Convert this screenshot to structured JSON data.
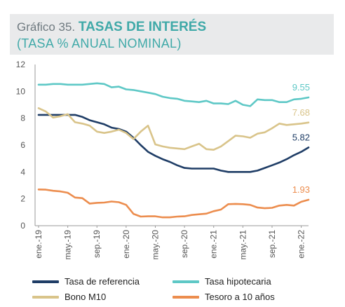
{
  "header": {
    "prefix": "Gráfico 35. ",
    "title": "TASAS DE INTERÉS",
    "subtitle": "(TASA % ANUAL NOMINAL)"
  },
  "chart_data": {
    "type": "line",
    "title": "TASAS DE INTERÉS",
    "subtitle": "(TASA % ANUAL NOMINAL)",
    "ylim": [
      0,
      12
    ],
    "yticks": [
      0,
      2,
      4,
      6,
      8,
      10,
      12
    ],
    "grid": false,
    "legend_placement": "bottom",
    "x": [
      "2019-01",
      "2019-02",
      "2019-03",
      "2019-04",
      "2019-05",
      "2019-06",
      "2019-07",
      "2019-08",
      "2019-09",
      "2019-10",
      "2019-11",
      "2019-12",
      "2020-01",
      "2020-02",
      "2020-03",
      "2020-04",
      "2020-05",
      "2020-06",
      "2020-07",
      "2020-08",
      "2020-09",
      "2020-10",
      "2020-11",
      "2020-12",
      "2021-01",
      "2021-02",
      "2021-03",
      "2021-04",
      "2021-05",
      "2021-06",
      "2021-07",
      "2021-08",
      "2021-09",
      "2021-10",
      "2021-11",
      "2021-12",
      "2022-01",
      "2022-02"
    ],
    "xtick_labels": [
      {
        "at": 0,
        "label": "ene.-19"
      },
      {
        "at": 4,
        "label": "may.-19"
      },
      {
        "at": 8,
        "label": "sep.-19"
      },
      {
        "at": 12,
        "label": "ene.-20"
      },
      {
        "at": 16,
        "label": "may.-20"
      },
      {
        "at": 20,
        "label": "sep.-20"
      },
      {
        "at": 24,
        "label": "ene.-21"
      },
      {
        "at": 28,
        "label": "may.-21"
      },
      {
        "at": 32,
        "label": "sep.-21"
      },
      {
        "at": 36,
        "label": "ene.-22"
      }
    ],
    "series": [
      {
        "name": "Tasa de referencia",
        "color": "#1f3d66",
        "end_label": "5.82",
        "values": [
          8.25,
          8.25,
          8.25,
          8.25,
          8.25,
          8.25,
          8.1,
          7.85,
          7.7,
          7.55,
          7.3,
          7.2,
          7.0,
          6.55,
          6.0,
          5.5,
          5.2,
          4.95,
          4.75,
          4.5,
          4.3,
          4.25,
          4.25,
          4.25,
          4.25,
          4.1,
          4.0,
          4.0,
          4.0,
          4.0,
          4.1,
          4.3,
          4.5,
          4.7,
          4.95,
          5.25,
          5.5,
          5.82
        ]
      },
      {
        "name": "Tasa hipotecaria",
        "color": "#5ec8c6",
        "end_label": "9.55",
        "values": [
          10.5,
          10.5,
          10.55,
          10.55,
          10.5,
          10.5,
          10.5,
          10.55,
          10.6,
          10.55,
          10.3,
          10.35,
          10.15,
          10.1,
          10.0,
          9.9,
          9.8,
          9.6,
          9.5,
          9.45,
          9.3,
          9.25,
          9.2,
          9.3,
          9.1,
          9.1,
          9.05,
          9.3,
          9.0,
          8.9,
          9.4,
          9.35,
          9.35,
          9.2,
          9.2,
          9.4,
          9.45,
          9.55
        ]
      },
      {
        "name": "Bono M10",
        "color": "#d9c48a",
        "end_label": "7.68",
        "values": [
          8.75,
          8.5,
          8.05,
          8.15,
          8.3,
          7.7,
          7.6,
          7.45,
          7.0,
          6.9,
          7.0,
          7.15,
          6.9,
          6.45,
          7.0,
          7.45,
          6.05,
          5.9,
          5.8,
          5.75,
          5.7,
          5.9,
          6.1,
          5.7,
          5.65,
          5.9,
          6.3,
          6.7,
          6.65,
          6.55,
          6.85,
          6.95,
          7.25,
          7.6,
          7.5,
          7.55,
          7.6,
          7.68
        ]
      },
      {
        "name": "Tesoro a 10 años",
        "color": "#ec8d4e",
        "end_label": "1.93",
        "values": [
          2.7,
          2.68,
          2.6,
          2.55,
          2.45,
          2.1,
          2.05,
          1.65,
          1.7,
          1.72,
          1.8,
          1.75,
          1.55,
          0.88,
          0.68,
          0.7,
          0.7,
          0.62,
          0.62,
          0.68,
          0.7,
          0.8,
          0.85,
          0.9,
          1.08,
          1.2,
          1.6,
          1.62,
          1.6,
          1.55,
          1.35,
          1.3,
          1.33,
          1.5,
          1.55,
          1.5,
          1.78,
          1.93
        ]
      }
    ]
  }
}
